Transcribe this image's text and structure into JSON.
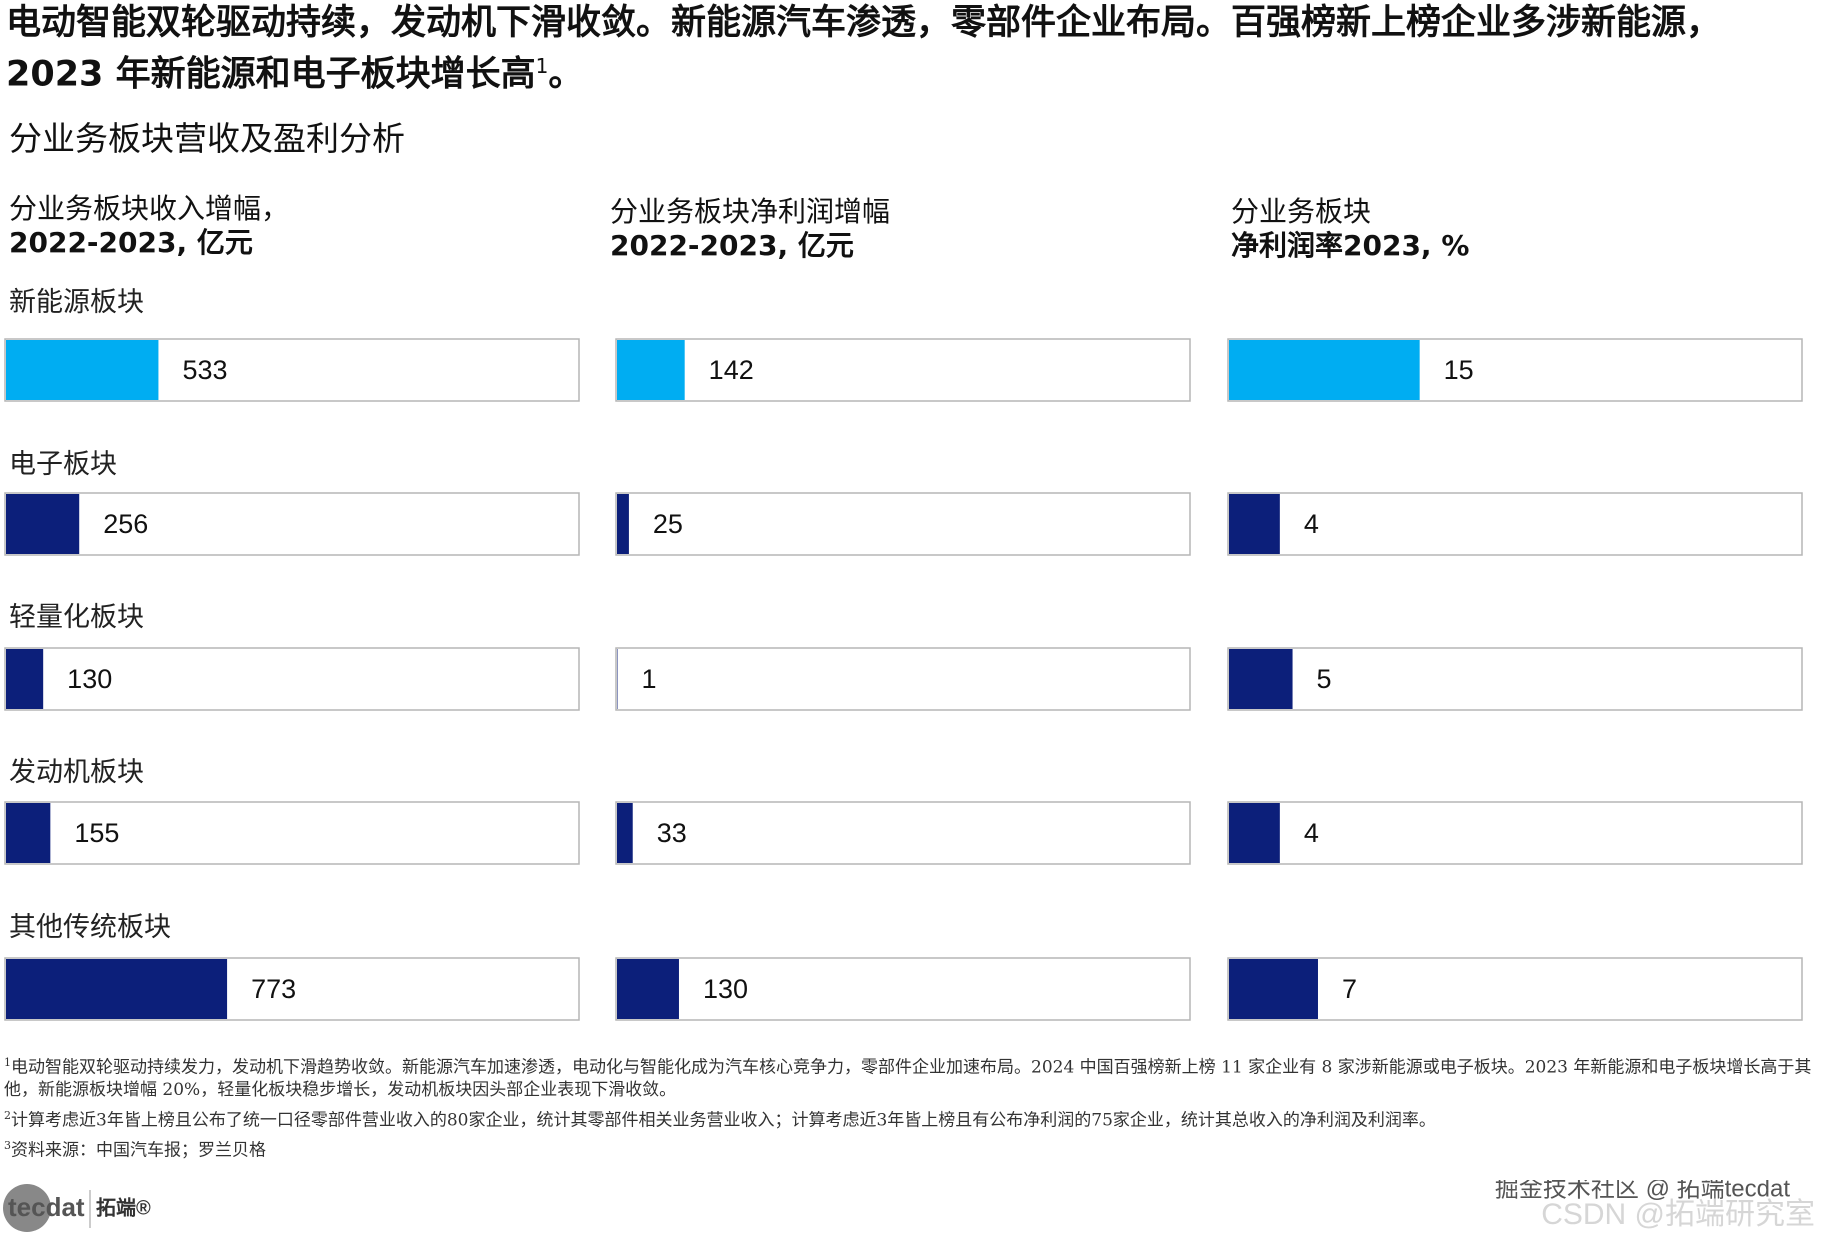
{
  "header": {
    "title": "电动智能双轮驱动持续，发动机下滑收敛。新能源汽车渗透，零部件企业布局。百强榜新上榜企业多涉新能源，2023 年新能源和电子板块增长高",
    "title_note": "1",
    "title_end": "。",
    "subtitle": "分业务板块营收及盈利分析"
  },
  "chart_data": [
    {
      "type": "bar",
      "title_lines": [
        "分业务板块收入增幅，",
        "2022-2023, 亿元"
      ],
      "categories": [
        "新能源板块",
        "电子板块",
        "轻量化板块",
        "发动机板块",
        "其他传统板块"
      ],
      "values": [
        533,
        256,
        130,
        155,
        773
      ],
      "colors": [
        "#00adf2",
        "#0c1f7a",
        "#0c1f7a",
        "#0c1f7a",
        "#0c1f7a"
      ],
      "xlim": [
        0,
        2000
      ]
    },
    {
      "type": "bar",
      "title_lines": [
        "分业务板块净利润增幅",
        "2022-2023, 亿元"
      ],
      "values": [
        142,
        25,
        1,
        33,
        130
      ],
      "colors": [
        "#00adf2",
        "#0c1f7a",
        "#0c1f7a",
        "#0c1f7a",
        "#0c1f7a"
      ],
      "xlim": [
        0,
        1200
      ]
    },
    {
      "type": "bar",
      "title_lines": [
        "分业务板块",
        "净利润率2023, %"
      ],
      "values": [
        15,
        4,
        5,
        4,
        7
      ],
      "colors": [
        "#00adf2",
        "#0c1f7a",
        "#0c1f7a",
        "#0c1f7a",
        "#0c1f7a"
      ],
      "xlim": [
        0,
        45
      ]
    }
  ],
  "footnotes": [
    {
      "marker": "1",
      "text": "电动智能双轮驱动持续发力，发动机下滑趋势收敛。新能源汽车加速渗透，电动化与智能化成为汽车核心竞争力，零部件企业加速布局。2024 中国百强榜新上榜 11 家企业有 8 家涉新能源或电子板块。2023 年新能源和电子板块增长高于其他，新能源板块增幅 20%，轻量化板块稳步增长，发动机板块因头部企业表现下滑收敛。"
    },
    {
      "marker": "2",
      "text": "计算考虑近3年皆上榜且公布了统一口径零部件营业收入的80家企业，统计其零部件相关业务营业收入；计算考虑近3年皆上榜且有公布净利润的75家企业，统计其总收入的净利润及利润率。"
    },
    {
      "marker": "3",
      "text": "资料来源：中国汽车报；罗兰贝格"
    }
  ],
  "logo": {
    "mark": "tecdat",
    "name": "拓端®"
  },
  "watermark": {
    "line1": "掘金技术社区 @ 拓端tecdat",
    "line2": "CSDN @拓端研究室"
  }
}
